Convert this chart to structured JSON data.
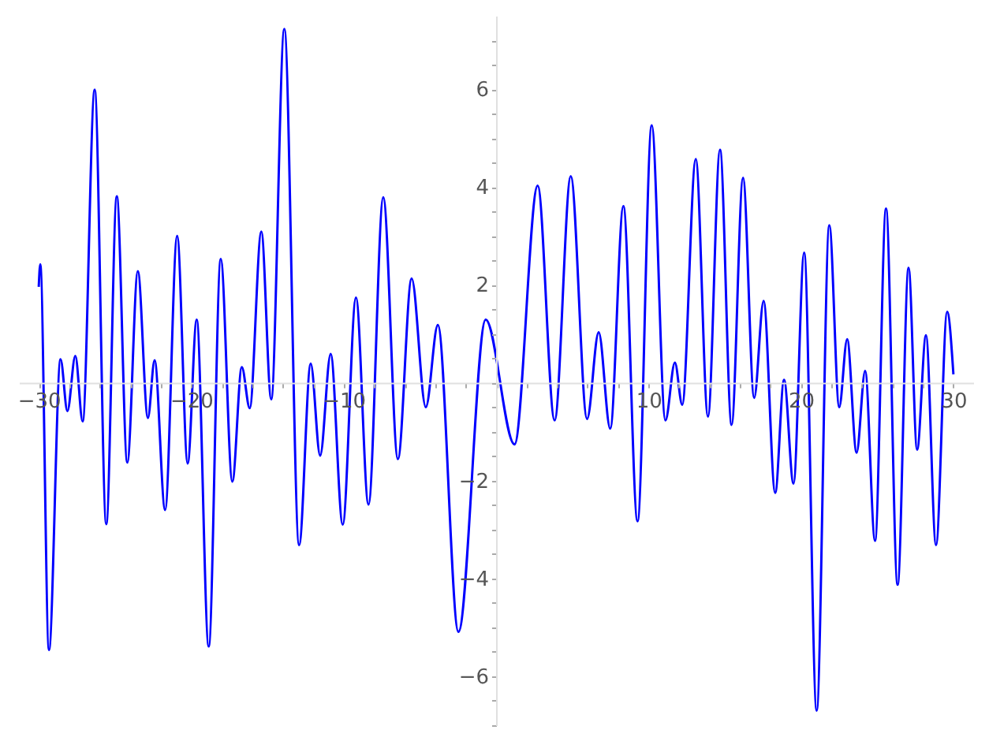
{
  "chart_data": {
    "type": "line",
    "marker": "none",
    "grid": false,
    "x": [
      -30.0,
      -29.9,
      -29.33,
      -28.57,
      -28.12,
      -27.6,
      -27.12,
      -26.33,
      -25.57,
      -24.88,
      -24.19,
      -23.5,
      -22.84,
      -22.4,
      -21.71,
      -20.92,
      -20.23,
      -19.64,
      -18.85,
      -18.06,
      -17.3,
      -16.68,
      -16.16,
      -15.4,
      -14.75,
      -13.89,
      -12.92,
      -12.16,
      -11.54,
      -10.85,
      -10.06,
      -9.19,
      -8.37,
      -7.4,
      -6.44,
      -5.54,
      -4.61,
      -3.82,
      -2.47,
      -0.68,
      1.21,
      2.73,
      3.84,
      4.9,
      5.97,
      6.73,
      7.49,
      8.35,
      9.28,
      10.21,
      11.11,
      11.73,
      12.21,
      13.1,
      13.9,
      14.69,
      15.45,
      16.2,
      16.93,
      17.55,
      18.31,
      18.89,
      19.51,
      20.21,
      21.03,
      21.86,
      22.51,
      23.03,
      23.65,
      24.21,
      24.86,
      25.58,
      26.34,
      27.06,
      27.62,
      28.2,
      28.86,
      29.59,
      30.0
    ],
    "series": [
      {
        "color": "#0000ff",
        "values": [
          1.96,
          2.42,
          -5.46,
          0.48,
          -0.58,
          0.55,
          -0.79,
          5.99,
          -2.89,
          3.81,
          -1.63,
          2.28,
          -0.72,
          0.46,
          -2.6,
          3.0,
          -1.65,
          1.29,
          -5.39,
          2.53,
          -2.02,
          0.32,
          -0.52,
          3.09,
          -0.34,
          7.23,
          -3.32,
          0.39,
          -1.49,
          0.59,
          -2.9,
          1.74,
          -2.49,
          3.79,
          -1.56,
          2.13,
          -0.5,
          1.18,
          -5.09,
          1.29,
          -1.26,
          4.03,
          -0.77,
          4.22,
          -0.74,
          1.03,
          -0.94,
          3.61,
          -2.83,
          5.26,
          -0.77,
          0.41,
          -0.45,
          4.57,
          -0.69,
          4.76,
          -0.86,
          4.19,
          -0.31,
          1.67,
          -2.25,
          0.06,
          -2.06,
          2.66,
          -6.7,
          3.22,
          -0.5,
          0.89,
          -1.43,
          0.24,
          -3.23,
          3.56,
          -4.13,
          2.35,
          -1.37,
          0.97,
          -3.32,
          1.45,
          0.17
        ]
      }
    ],
    "xlim": [
      -31.3,
      31.3
    ],
    "ylim": [
      -7.0,
      7.5
    ],
    "xticks": [
      -30,
      {
        "value": -28,
        "label": null
      },
      {
        "value": -26,
        "label": null
      },
      {
        "value": -24,
        "label": null
      },
      {
        "value": -22,
        "label": null
      },
      -20,
      {
        "value": -18,
        "label": null
      },
      {
        "value": -16,
        "label": null
      },
      {
        "value": -14,
        "label": null
      },
      {
        "value": -12,
        "label": null
      },
      -10,
      {
        "value": -8,
        "label": null
      },
      {
        "value": -6,
        "label": null
      },
      {
        "value": -4,
        "label": null
      },
      {
        "value": -2,
        "label": null
      },
      {
        "value": 0,
        "label": null
      },
      {
        "value": 2,
        "label": null
      },
      {
        "value": 4,
        "label": null
      },
      {
        "value": 6,
        "label": null
      },
      {
        "value": 8,
        "label": null
      },
      10,
      {
        "value": 12,
        "label": null
      },
      {
        "value": 14,
        "label": null
      },
      {
        "value": 16,
        "label": null
      },
      {
        "value": 18,
        "label": null
      },
      20,
      {
        "value": 22,
        "label": null
      },
      {
        "value": 24,
        "label": null
      },
      {
        "value": 26,
        "label": null
      },
      {
        "value": 28,
        "label": null
      },
      30
    ],
    "yticks": [
      {
        "value": -7,
        "label": null
      },
      {
        "value": -6.5,
        "label": null
      },
      -6,
      {
        "value": -5.5,
        "label": null
      },
      {
        "value": -5,
        "label": null
      },
      {
        "value": -4.5,
        "label": null
      },
      -4,
      {
        "value": -3.5,
        "label": null
      },
      {
        "value": -3,
        "label": null
      },
      {
        "value": -2.5,
        "label": null
      },
      -2,
      {
        "value": -1.5,
        "label": null
      },
      {
        "value": -1,
        "label": null
      },
      {
        "value": -0.5,
        "label": null
      },
      {
        "value": 0,
        "label": null
      },
      {
        "value": 0.5,
        "label": null
      },
      {
        "value": 1,
        "label": null
      },
      {
        "value": 1.5,
        "label": null
      },
      2,
      {
        "value": 2.5,
        "label": null
      },
      {
        "value": 3,
        "label": null
      },
      {
        "value": 3.5,
        "label": null
      },
      4,
      {
        "value": 4.5,
        "label": null
      },
      {
        "value": 5,
        "label": null
      },
      {
        "value": 5.5,
        "label": null
      },
      6,
      {
        "value": 6.5,
        "label": null
      },
      {
        "value": 7,
        "label": null
      }
    ]
  }
}
